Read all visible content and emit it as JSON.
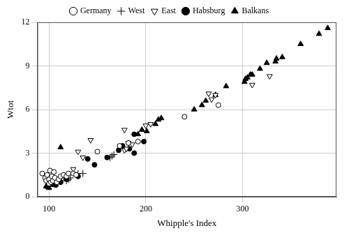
{
  "chart_data": {
    "type": "scatter",
    "x_label": "Whipple's Index",
    "y_label": "Wtot",
    "xlim": [
      88,
      397
    ],
    "xticks": [
      100,
      200,
      300
    ],
    "ylim": [
      0,
      12
    ],
    "yticks": [
      0,
      3,
      6,
      9,
      12
    ],
    "grid": true,
    "legend": "top",
    "series": [
      {
        "name": "Germany",
        "color": "#000000",
        "marker": "circle-open",
        "x": [
          93,
          96,
          97,
          98,
          100,
          100,
          101,
          102,
          103,
          104,
          105,
          106,
          108,
          110,
          112,
          115,
          118,
          120,
          125,
          128,
          150,
          173,
          182,
          192,
          240,
          275
        ],
        "values": [
          1.6,
          1.3,
          1.1,
          1.5,
          1.2,
          0.9,
          1.8,
          1.0,
          1.4,
          1.1,
          1.7,
          1.3,
          1.0,
          1.2,
          1.4,
          1.5,
          1.4,
          1.6,
          1.6,
          1.5,
          3.1,
          3.5,
          3.7,
          3.8,
          5.5,
          6.3
        ]
      },
      {
        "name": "West",
        "color": "#000000",
        "marker": "plus",
        "x": [
          108,
          110,
          115,
          118,
          120,
          122,
          130,
          135,
          163,
          165,
          167
        ],
        "values": [
          1.0,
          1.2,
          1.4,
          1.1,
          1.2,
          1.3,
          1.6,
          1.6,
          2.7,
          2.8,
          2.9
        ]
      },
      {
        "name": "East",
        "color": "#000000",
        "marker": "triangle-down-open",
        "x": [
          125,
          130,
          135,
          143,
          178,
          178,
          180,
          182,
          186,
          200,
          205,
          265,
          268,
          272,
          310,
          328
        ],
        "values": [
          1.9,
          3.1,
          2.7,
          3.9,
          4.6,
          3.2,
          3.3,
          3.7,
          3.6,
          4.9,
          5.0,
          7.1,
          6.7,
          7.0,
          7.7,
          8.3
        ]
      },
      {
        "name": "Habsburg",
        "color": "#000000",
        "marker": "circle",
        "x": [
          98,
          100,
          103,
          107,
          112,
          118,
          130,
          140,
          147,
          160,
          172,
          176,
          183,
          188,
          188,
          198
        ],
        "values": [
          0.7,
          0.9,
          1.0,
          0.8,
          1.0,
          1.2,
          1.4,
          2.6,
          2.2,
          2.7,
          3.2,
          3.5,
          3.3,
          3.0,
          4.3,
          3.8
        ]
      },
      {
        "name": "Balkans",
        "color": "#000000",
        "marker": "triangle",
        "x": [
          97,
          100,
          103,
          106,
          112,
          192,
          196,
          201,
          210,
          213,
          216,
          250,
          258,
          262,
          272,
          283,
          302,
          303,
          305,
          308,
          310,
          318,
          325,
          334,
          335,
          341,
          360,
          379,
          388
        ],
        "values": [
          0.7,
          0.6,
          0.8,
          0.9,
          3.4,
          4.3,
          4.6,
          4.5,
          5.0,
          5.3,
          5.4,
          6.0,
          6.3,
          6.6,
          7.0,
          7.6,
          7.9,
          8.1,
          8.2,
          8.4,
          8.4,
          8.8,
          9.2,
          9.3,
          9.5,
          9.6,
          10.5,
          11.2,
          11.6
        ]
      }
    ]
  }
}
